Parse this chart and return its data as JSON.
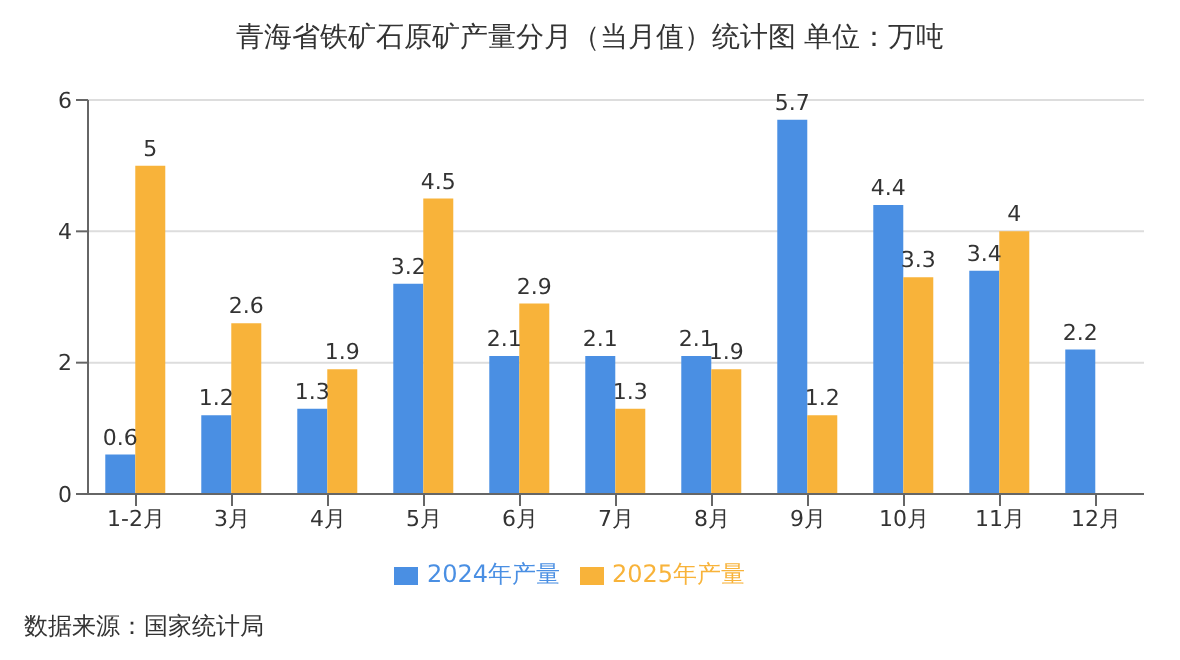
{
  "chart_data": {
    "type": "bar",
    "title": "青海省铁矿石原矿产量分月（当月值）统计图  单位：万吨",
    "categories": [
      "1-2月",
      "3月",
      "4月",
      "5月",
      "6月",
      "7月",
      "8月",
      "9月",
      "10月",
      "11月",
      "12月"
    ],
    "series": [
      {
        "name": "2024年产量",
        "color": "#4a8fe3",
        "values": [
          0.6,
          1.2,
          1.3,
          3.2,
          2.1,
          2.1,
          2.1,
          5.7,
          4.4,
          3.4,
          2.2
        ]
      },
      {
        "name": "2025年产量",
        "color": "#f8b33a",
        "values": [
          5,
          2.6,
          1.9,
          4.5,
          2.9,
          1.3,
          1.9,
          1.2,
          3.3,
          4,
          null
        ]
      }
    ],
    "ylim": [
      0,
      6
    ],
    "yticks": [
      0,
      2,
      4,
      6
    ],
    "grid": "y",
    "legend": "bottom",
    "data_labels": true,
    "annotations": [
      "数据来源：国家统计局"
    ]
  }
}
